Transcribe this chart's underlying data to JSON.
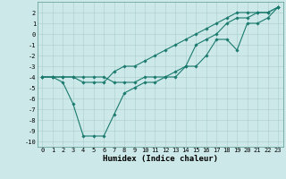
{
  "xlabel": "Humidex (Indice chaleur)",
  "ylabel": "",
  "xlim": [
    -0.5,
    23.5
  ],
  "ylim": [
    -10.5,
    3.0
  ],
  "background_color": "#cce8e8",
  "grid_color": "#aacccc",
  "line_color": "#1a7a6e",
  "line1_x": [
    0,
    1,
    2,
    3,
    4,
    5,
    6,
    7,
    8,
    9,
    10,
    11,
    12,
    13,
    14,
    15,
    16,
    17,
    18,
    19,
    20,
    21,
    22,
    23
  ],
  "line1_y": [
    -4,
    -4,
    -4,
    -4,
    -4,
    -4,
    -4,
    -4.5,
    -4.5,
    -4.5,
    -4,
    -4,
    -4,
    -3.5,
    -3,
    -1,
    -0.5,
    0,
    1,
    1.5,
    1.5,
    2,
    2,
    2.5
  ],
  "line2_x": [
    0,
    1,
    2,
    3,
    4,
    5,
    6,
    7,
    8,
    9,
    10,
    11,
    12,
    13,
    14,
    15,
    16,
    17,
    18,
    19,
    20,
    21,
    22,
    23
  ],
  "line2_y": [
    -4,
    -4,
    -4.5,
    -6.5,
    -9.5,
    -9.5,
    -9.5,
    -7.5,
    -5.5,
    -5,
    -4.5,
    -4.5,
    -4,
    -4,
    -3,
    -3,
    -2,
    -0.5,
    -0.5,
    -1.5,
    1,
    1,
    1.5,
    2.5
  ],
  "line3_x": [
    0,
    1,
    2,
    3,
    4,
    5,
    6,
    7,
    8,
    9,
    10,
    11,
    12,
    13,
    14,
    15,
    16,
    17,
    18,
    19,
    20,
    21,
    22,
    23
  ],
  "line3_y": [
    -4,
    -4,
    -4,
    -4,
    -4.5,
    -4.5,
    -4.5,
    -3.5,
    -3,
    -3,
    -2.5,
    -2,
    -1.5,
    -1,
    -0.5,
    0,
    0.5,
    1,
    1.5,
    2,
    2,
    2,
    2,
    2.5
  ],
  "xticks": [
    0,
    1,
    2,
    3,
    4,
    5,
    6,
    7,
    8,
    9,
    10,
    11,
    12,
    13,
    14,
    15,
    16,
    17,
    18,
    19,
    20,
    21,
    22,
    23
  ],
  "yticks": [
    2,
    1,
    0,
    -1,
    -2,
    -3,
    -4,
    -5,
    -6,
    -7,
    -8,
    -9,
    -10
  ],
  "marker": "D",
  "markersize": 1.8,
  "linewidth": 0.8,
  "tick_fontsize": 5.0,
  "label_fontsize": 6.5
}
